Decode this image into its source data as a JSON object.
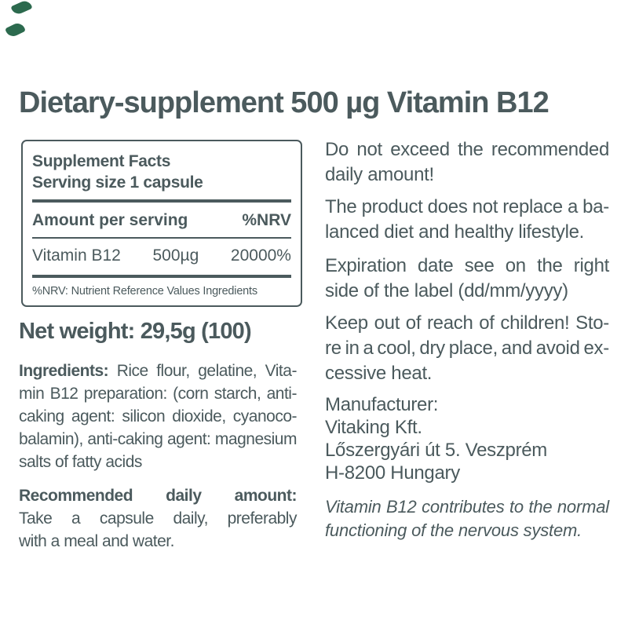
{
  "colors": {
    "ink": "#4b5a5d",
    "leaf_green": "#2c6a4e",
    "background": "#ffffff"
  },
  "title": "Dietary-supplement 500 µg Vitamin B12",
  "facts_panel": {
    "heading": "Supplement Facts",
    "serving_size": "Serving size 1 capsule",
    "col_amount": "Amount per serving",
    "col_nrv": "%NRV",
    "row": {
      "nutrient": "Vitamin B12",
      "amount": "500µg",
      "nrv": "20000%"
    },
    "footnote": "%NRV: Nutrient Reference Values Ingredients"
  },
  "left": {
    "net_weight": "Net weight: 29,5g (100)",
    "ingredients_lines": [
      {
        "text": "Ingredients: Rice flour, gelatine, Vita-",
        "bold_words": 1
      },
      "min B12 preparation: (corn starch, anti-",
      "caking agent: silicon dioxide, cyanoco-",
      "balamin), anti-caking agent: magnesium",
      "salts of fatty acids"
    ],
    "recommended_lines": [
      {
        "text": "Recommended daily amount:",
        "bold": true
      },
      "Take a capsule daily, preferably",
      "with a meal and water."
    ]
  },
  "right": {
    "paragraphs": [
      {
        "name": "warning-exceed",
        "gap": "gap9",
        "lines": [
          "Do not exceed the recommended",
          "daily amount!"
        ]
      },
      {
        "name": "warning-balanced-diet",
        "gap": "gap11",
        "lines": [
          "The product does not replace a ba-",
          "lanced diet and healthy lifestyle."
        ]
      },
      {
        "name": "expiration-note",
        "gap": "gap9",
        "lines": [
          "Expiration date see on the right",
          "side of the label (dd/mm/yyyy)"
        ]
      },
      {
        "name": "storage-warning",
        "gap": "gap9",
        "lines": [
          "Keep out of reach of children! Sto-",
          "re in a cool, dry place, and avoid ex-",
          "cessive heat."
        ]
      },
      {
        "name": "manufacturer-info",
        "justify": false,
        "tight": true,
        "lines": [
          "Manufacturer:",
          "Vitaking Kft.",
          "Lőszergyári út 5. Veszprém",
          "H-8200 Hungary"
        ]
      },
      {
        "name": "health-claim",
        "italic": true,
        "lines": [
          "Vitamin B12 contributes to the normal",
          "functioning of the nervous system."
        ]
      }
    ]
  }
}
